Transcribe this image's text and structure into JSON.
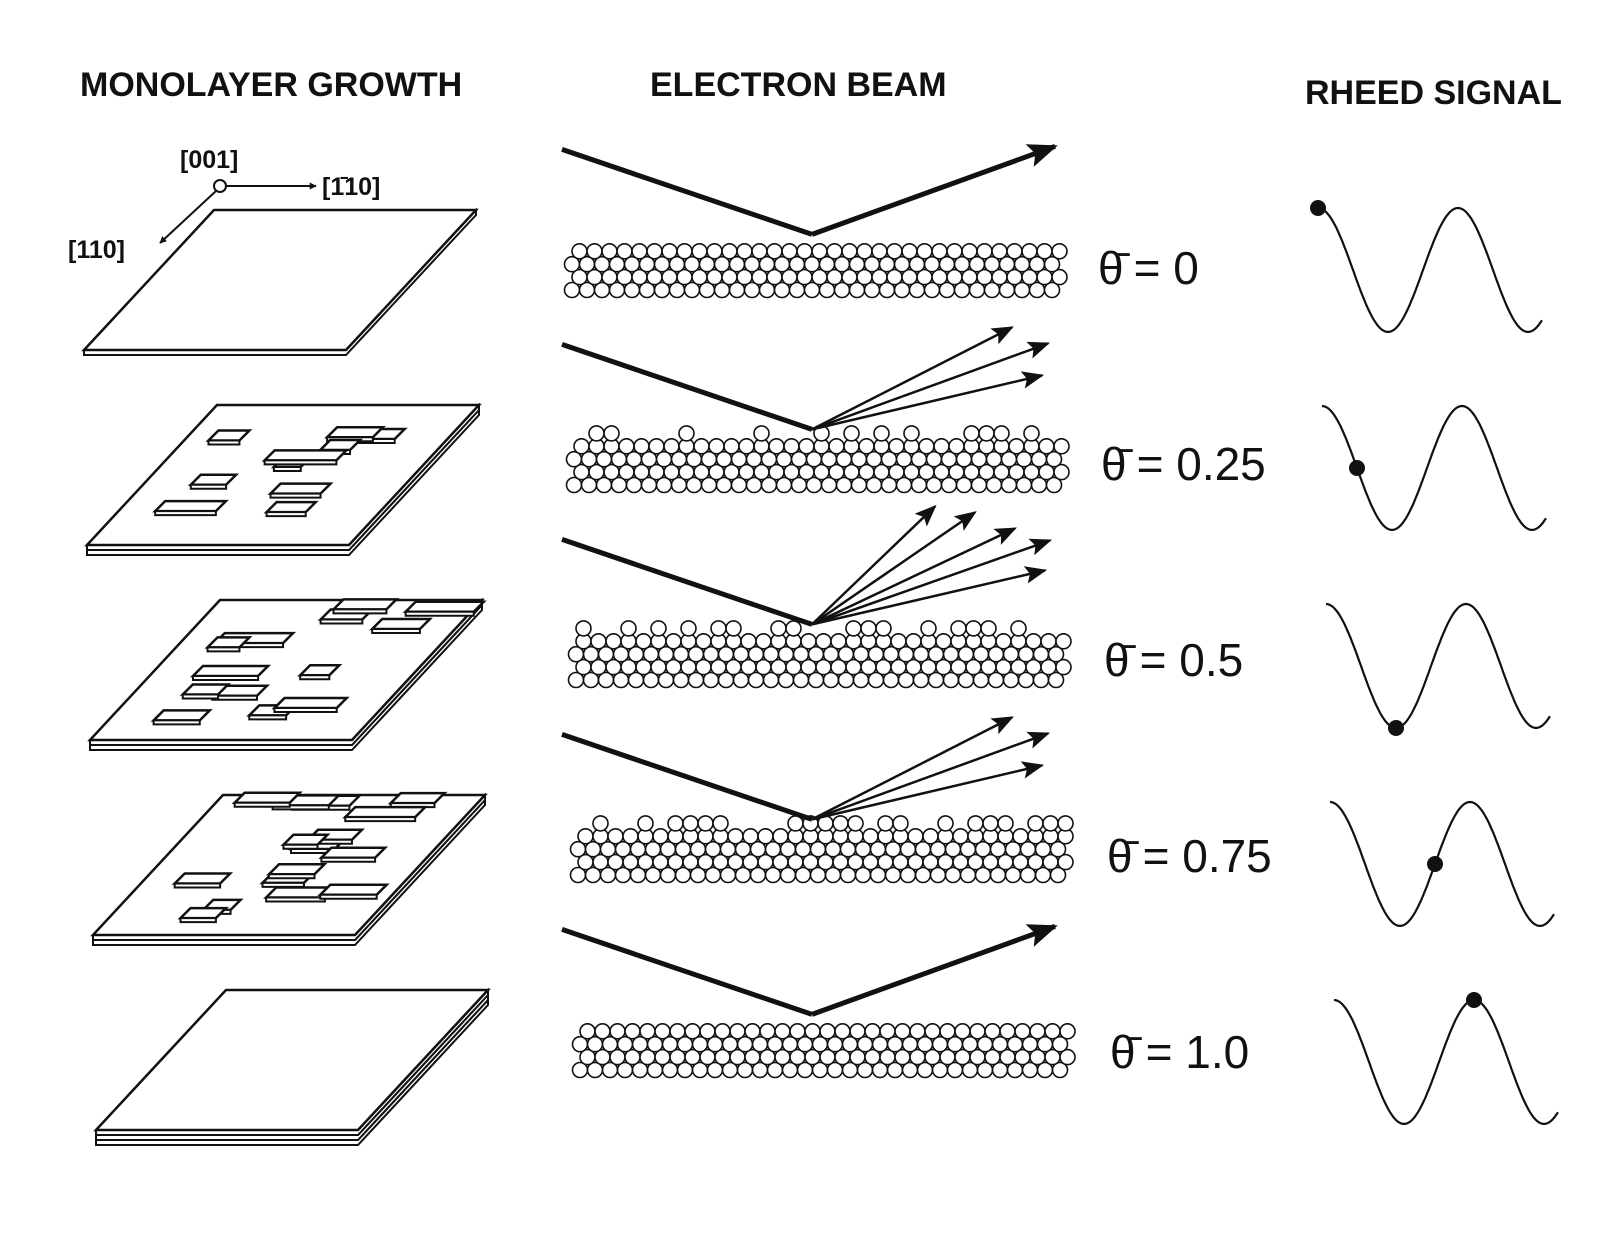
{
  "columns": {
    "growth": "MONOLAYER GROWTH",
    "beam": "ELECTRON BEAM",
    "signal": "RHEED SIGNAL"
  },
  "axes": {
    "z": "[001]",
    "x": "[1̄10]",
    "y": "[110]"
  },
  "coverage_symbol": "θ̄",
  "stages": [
    {
      "coverage": 0,
      "label": "= 0",
      "signal_position": 0.0,
      "scatter": "specular"
    },
    {
      "coverage": 0.25,
      "label": "= 0.25",
      "signal_position": 0.25,
      "scatter": "diffuse"
    },
    {
      "coverage": 0.5,
      "label": "= 0.5",
      "signal_position": 0.5,
      "scatter": "very-diffuse"
    },
    {
      "coverage": 0.75,
      "label": "= 0.75",
      "signal_position": 0.75,
      "scatter": "diffuse"
    },
    {
      "coverage": 1.0,
      "label": "= 1.0",
      "signal_position": 1.0,
      "scatter": "specular"
    }
  ]
}
